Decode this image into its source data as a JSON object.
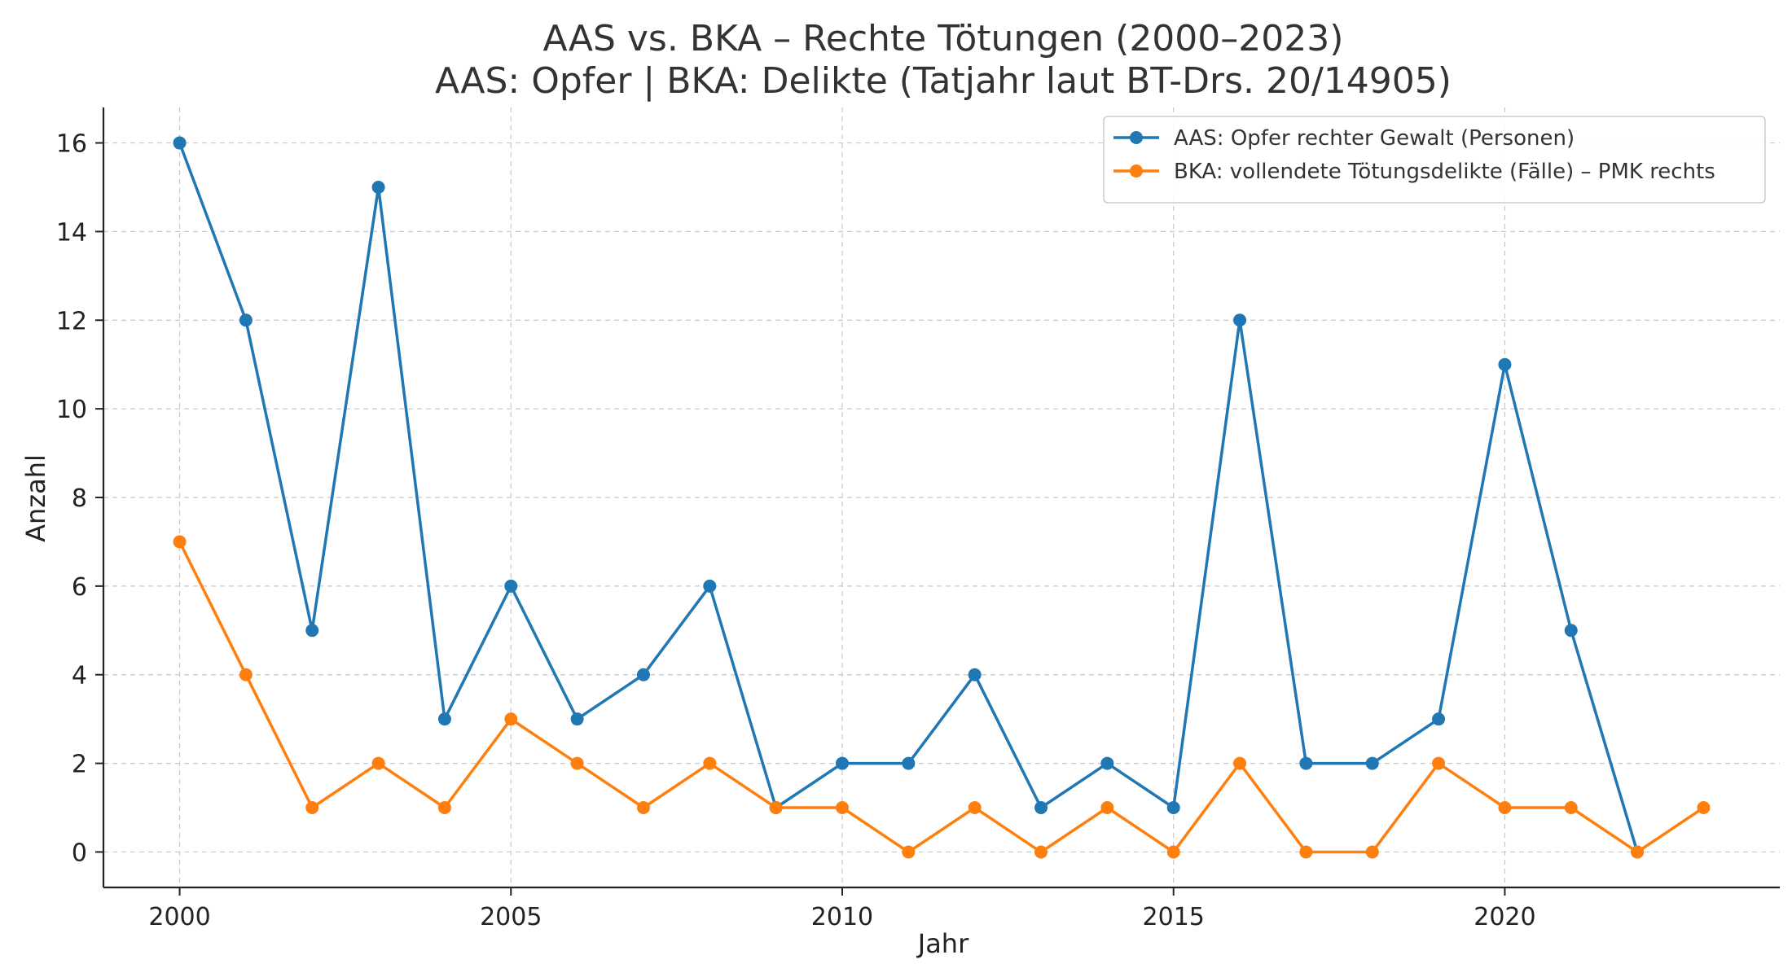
{
  "chart_data": {
    "type": "line",
    "title": "AAS vs. BKA – Rechte Tötungen (2000–2023)",
    "subtitle": "AAS: Opfer | BKA: Delikte (Tatjahr laut BT-Drs. 20/14905)",
    "xlabel": "Jahr",
    "ylabel": "Anzahl",
    "x": [
      2000,
      2001,
      2002,
      2003,
      2004,
      2005,
      2006,
      2007,
      2008,
      2009,
      2010,
      2011,
      2012,
      2013,
      2014,
      2015,
      2016,
      2017,
      2018,
      2019,
      2020,
      2021,
      2022,
      2023
    ],
    "xlim": [
      1998.85,
      2024.15
    ],
    "ylim": [
      -0.8,
      16.8
    ],
    "xticks": [
      2000,
      2005,
      2010,
      2015,
      2020
    ],
    "yticks": [
      0,
      2,
      4,
      6,
      8,
      10,
      12,
      14,
      16
    ],
    "grid": true,
    "legend_position": "top-right",
    "series": [
      {
        "name": "AAS: Opfer rechter Gewalt (Personen)",
        "color": "#1f77b4",
        "values": [
          16,
          12,
          5,
          15,
          3,
          6,
          3,
          4,
          6,
          1,
          2,
          2,
          4,
          1,
          2,
          1,
          12,
          2,
          2,
          3,
          11,
          5,
          0,
          null
        ]
      },
      {
        "name": "BKA: vollendete Tötungsdelikte (Fälle) – PMK rechts",
        "color": "#ff7f0e",
        "values": [
          7,
          4,
          1,
          2,
          1,
          3,
          2,
          1,
          2,
          1,
          1,
          0,
          1,
          0,
          1,
          0,
          2,
          0,
          0,
          2,
          1,
          1,
          0,
          1
        ]
      }
    ]
  }
}
